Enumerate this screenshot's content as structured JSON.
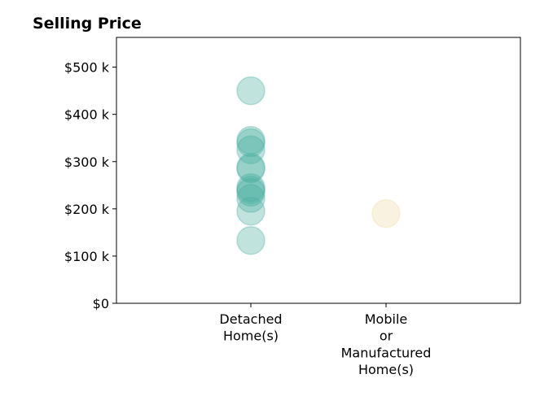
{
  "chart_data": {
    "type": "scatter",
    "title": "Selling Price",
    "xlabel": "",
    "ylabel": "",
    "categories": [
      [
        "Detached",
        "Home(s)"
      ],
      [
        "Mobile",
        "or",
        "Manufactured",
        "Home(s)"
      ]
    ],
    "ylim": [
      0,
      563000
    ],
    "yticks": [
      0,
      100000,
      200000,
      300000,
      400000,
      500000
    ],
    "ytick_labels": [
      "$0",
      "$100 k",
      "$200 k",
      "$300 k",
      "$400 k",
      "$500 k"
    ],
    "grid": false,
    "series": [
      {
        "category_index": 0,
        "color": "#4aaea0",
        "values": [
          450000,
          345000,
          340000,
          325000,
          288000,
          285000,
          245000,
          240000,
          235000,
          222000,
          195000,
          133000
        ]
      },
      {
        "category_index": 1,
        "color": "#f2d9a6",
        "values": [
          190000
        ]
      }
    ]
  }
}
